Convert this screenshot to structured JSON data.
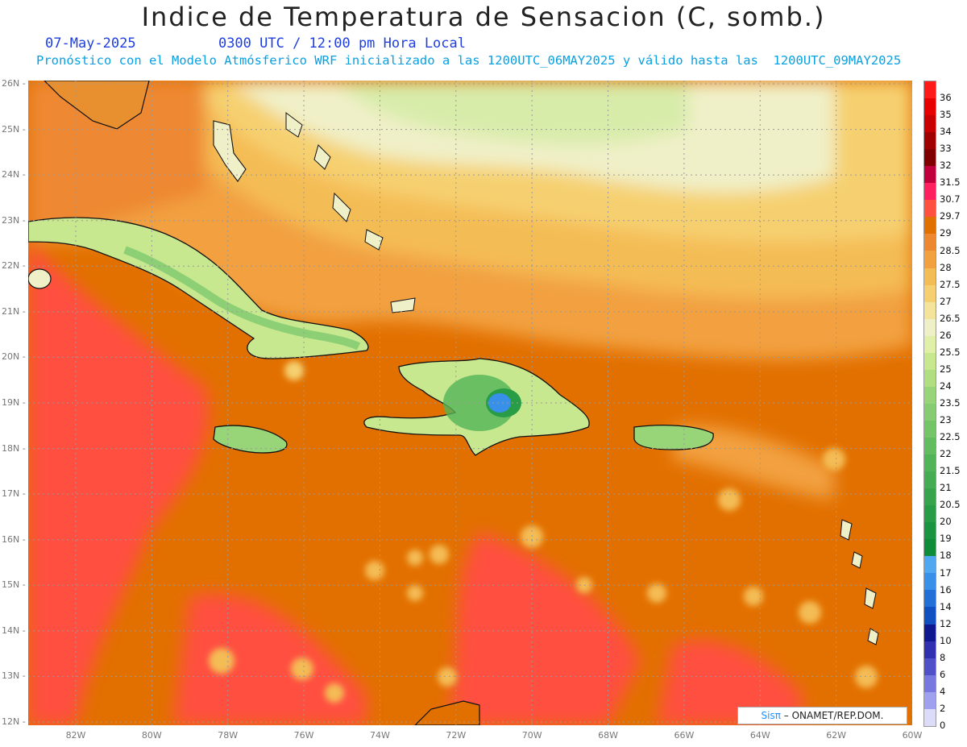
{
  "header": {
    "title": "Indice de Temperatura de Sensacion (C, somb.)",
    "date": "07-May-2025",
    "time": "0300 UTC / 12:00 pm Hora Local",
    "model_info": "Pronóstico con el Modelo Atmósferico WRF inicializado a las 1200UTC_06MAY2025 y válido hasta las  1200UTC_09MAY2025"
  },
  "axes": {
    "lat_labels": [
      "26N",
      "25N",
      "24N",
      "23N",
      "22N",
      "21N",
      "20N",
      "19N",
      "18N",
      "17N",
      "16N",
      "15N",
      "14N",
      "13N",
      "12N"
    ],
    "lon_labels": [
      "82W",
      "80W",
      "78W",
      "76W",
      "74W",
      "72W",
      "70W",
      "68W",
      "66W",
      "64W",
      "62W",
      "60W"
    ]
  },
  "colorbar": {
    "labels": [
      "36",
      "35",
      "34",
      "33",
      "32",
      "31.5",
      "30.7",
      "29.7",
      "29",
      "28.5",
      "28",
      "27.5",
      "27",
      "26.5",
      "26",
      "25.5",
      "25",
      "24",
      "23.5",
      "23",
      "22.5",
      "22",
      "21.5",
      "21",
      "20.5",
      "20",
      "19",
      "18",
      "17",
      "16",
      "14",
      "12",
      "10",
      "8",
      "6",
      "4",
      "2",
      "0"
    ],
    "colors": [
      "#ff1a1a",
      "#e60000",
      "#c80000",
      "#a00000",
      "#800000",
      "#c0003c",
      "#ff2060",
      "#ff5040",
      "#e07000",
      "#ee8830",
      "#f2a040",
      "#f4bc55",
      "#f6d070",
      "#f4e49a",
      "#f0f0c8",
      "#e0f0a8",
      "#c8e890",
      "#b0de80",
      "#98d478",
      "#86cc70",
      "#74c468",
      "#62bc60",
      "#52b458",
      "#44ac52",
      "#36a44c",
      "#289c46",
      "#1a9440",
      "#0e8c3a",
      "#50a8f0",
      "#3890e8",
      "#2070d8",
      "#1050c0",
      "#101890",
      "#3030b0",
      "#5050c8",
      "#7878e0",
      "#a0a0f0",
      "#dcdcf8"
    ]
  },
  "credit": {
    "sis": "Sisπ",
    "org": "– ONAMET/REP.DOM."
  }
}
